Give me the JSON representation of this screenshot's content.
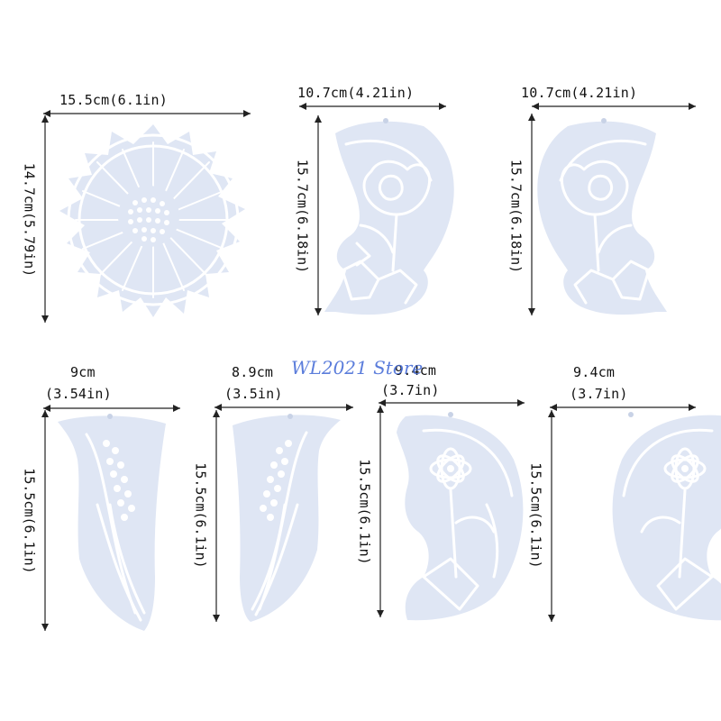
{
  "watermark": "WL2021 Store",
  "molds": [
    {
      "shape": "sunflower-round",
      "width_label": "15.5cm(6.1in)",
      "height_label": "14.7cm(5.79in)"
    },
    {
      "shape": "moon-rose",
      "width_label": "10.7cm(4.21in)",
      "height_label": "15.7cm(6.18in)"
    },
    {
      "shape": "moon-rose",
      "width_label": "10.7cm(4.21in)",
      "height_label": "15.7cm(6.18in)"
    },
    {
      "shape": "crescent-lavender",
      "width_label_top": "9cm",
      "width_label_bottom": "(3.54in)",
      "height_label": "15.5cm(6.1in)"
    },
    {
      "shape": "crescent-lavender",
      "width_label_top": "8.9cm",
      "width_label_bottom": "(3.5in)",
      "height_label": "15.5cm(6.1in)"
    },
    {
      "shape": "moon-daisy",
      "width_label_top": "9.4cm",
      "width_label_bottom": "(3.7in)",
      "height_label": "15.5cm(6.1in)"
    },
    {
      "shape": "moon-daisy",
      "width_label_top": "9.4cm",
      "width_label_bottom": "(3.7in)",
      "height_label": "15.5cm(6.1in)"
    }
  ],
  "colors": {
    "mold": "#dfe6f4",
    "line": "#222222",
    "watermark": "#4a6fd8"
  }
}
